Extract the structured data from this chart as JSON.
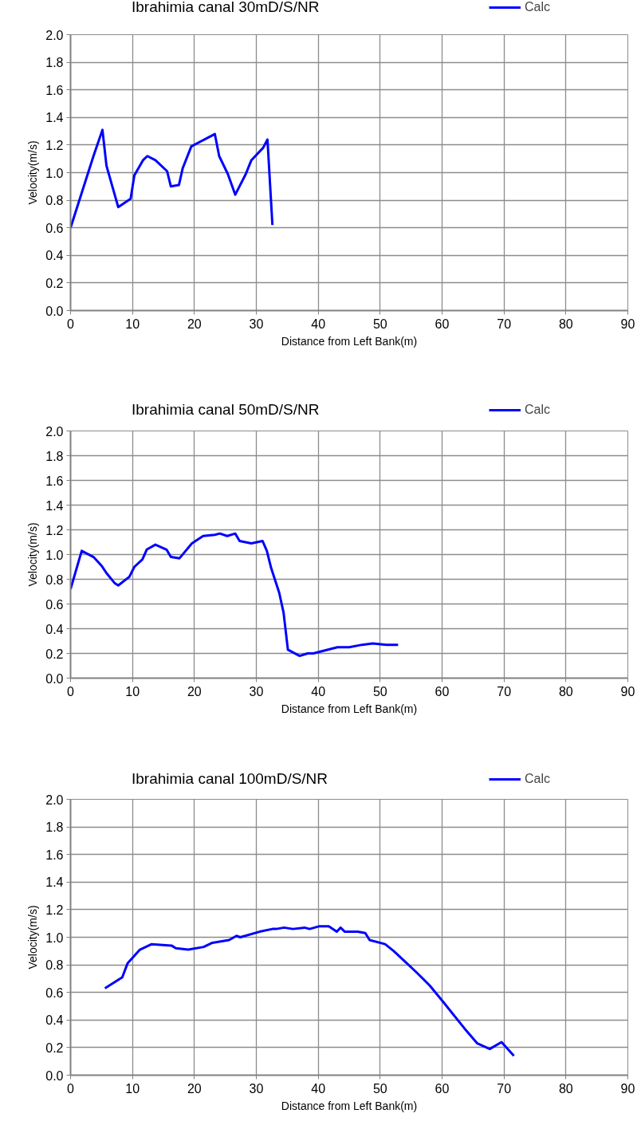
{
  "chart_data": [
    {
      "type": "line",
      "title": "Ibrahimia canal 30mD/S/NR",
      "xlabel": "Distance from Left Bank(m)",
      "ylabel": "Velocity(m/s)",
      "xlim": [
        0,
        90
      ],
      "ylim": [
        0,
        2
      ],
      "xticks": [
        0,
        10,
        20,
        30,
        40,
        50,
        60,
        70,
        80,
        90
      ],
      "yticks": [
        {
          "value": 0,
          "label": "0.0"
        },
        {
          "value": 0.2,
          "label": "0.2"
        },
        {
          "value": 0.4,
          "label": "0.4"
        },
        {
          "value": 0.6,
          "label": "0.6"
        },
        {
          "value": 0.8,
          "label": "0.8"
        },
        {
          "value": 1,
          "label": "1.0"
        },
        {
          "value": 1.2,
          "label": "1.2"
        },
        {
          "value": 1.4,
          "label": "1.4"
        },
        {
          "value": 1.6,
          "label": "1.6"
        },
        {
          "value": 1.8,
          "label": "1.8"
        },
        {
          "value": 2,
          "label": "2.0"
        }
      ],
      "grid": true,
      "legend": "top right",
      "line_style": "solid",
      "marker": "none",
      "series": [
        {
          "name": "Calc",
          "color": "#0000ff",
          "x": [
            0,
            3.7,
            5.15,
            5.8,
            7.7,
            9.7,
            10.3,
            11.7,
            12.4,
            13.7,
            15.6,
            16.2,
            17.5,
            18.1,
            19.5,
            23.3,
            24.0,
            25.4,
            26.6,
            28.3,
            29.2,
            31.1,
            31.8,
            32.6
          ],
          "values": [
            0.6,
            1.12,
            1.31,
            1.05,
            0.75,
            0.81,
            0.98,
            1.09,
            1.12,
            1.09,
            1.01,
            0.9,
            0.91,
            1.03,
            1.19,
            1.28,
            1.12,
            0.99,
            0.84,
            0.99,
            1.09,
            1.18,
            1.24,
            0.62
          ]
        }
      ]
    },
    {
      "type": "line",
      "title": "Ibrahimia canal 50mD/S/NR",
      "xlabel": "Distance from Left Bank(m)",
      "ylabel": "Velocity(m/s)",
      "xlim": [
        0,
        90
      ],
      "ylim": [
        0,
        2
      ],
      "xticks": [
        0,
        10,
        20,
        30,
        40,
        50,
        60,
        70,
        80,
        90
      ],
      "yticks": [
        {
          "value": 0,
          "label": "0.0"
        },
        {
          "value": 0.2,
          "label": "0.2"
        },
        {
          "value": 0.4,
          "label": "0.4"
        },
        {
          "value": 0.6,
          "label": "0.6"
        },
        {
          "value": 0.8,
          "label": "0.8"
        },
        {
          "value": 1,
          "label": "1.0"
        },
        {
          "value": 1.2,
          "label": "1.2"
        },
        {
          "value": 1.4,
          "label": "1.4"
        },
        {
          "value": 1.6,
          "label": "1.6"
        },
        {
          "value": 1.8,
          "label": "1.8"
        },
        {
          "value": 2,
          "label": "2.0"
        }
      ],
      "grid": true,
      "legend": "top right",
      "line_style": "solid",
      "marker": "none",
      "series": [
        {
          "name": "Calc",
          "color": "#0000ff",
          "x": [
            0,
            1.8,
            3.7,
            5.0,
            5.8,
            7.1,
            7.7,
            9.5,
            10.3,
            11.6,
            12.3,
            13.7,
            15.5,
            16.2,
            17.6,
            19.6,
            21.4,
            23.3,
            24.1,
            25.3,
            26.6,
            27.3,
            29.2,
            31.0,
            31.7,
            32.4,
            33.7,
            34.4,
            35.1,
            37.0,
            38.3,
            39.2,
            43.1,
            45.0,
            47.1,
            48.8,
            51.0,
            52.9
          ],
          "values": [
            0.72,
            1.03,
            0.98,
            0.91,
            0.85,
            0.77,
            0.75,
            0.82,
            0.9,
            0.96,
            1.04,
            1.08,
            1.04,
            0.98,
            0.97,
            1.09,
            1.15,
            1.16,
            1.17,
            1.15,
            1.17,
            1.11,
            1.09,
            1.11,
            1.03,
            0.89,
            0.69,
            0.53,
            0.23,
            0.18,
            0.2,
            0.2,
            0.25,
            0.25,
            0.27,
            0.28,
            0.27,
            0.27
          ]
        }
      ]
    },
    {
      "type": "line",
      "title": "Ibrahimia canal 100mD/S/NR",
      "xlabel": "Distance from Left Bank(m)",
      "ylabel": "Velocity(m/s)",
      "xlim": [
        0,
        90
      ],
      "ylim": [
        0,
        2
      ],
      "xticks": [
        0,
        10,
        20,
        30,
        40,
        50,
        60,
        70,
        80,
        90
      ],
      "yticks": [
        {
          "value": 0,
          "label": "0.0"
        },
        {
          "value": 0.2,
          "label": "0.2"
        },
        {
          "value": 0.4,
          "label": "0.4"
        },
        {
          "value": 0.6,
          "label": "0.6"
        },
        {
          "value": 0.8,
          "label": "0.8"
        },
        {
          "value": 1,
          "label": "1.0"
        },
        {
          "value": 1.2,
          "label": "1.2"
        },
        {
          "value": 1.4,
          "label": "1.4"
        },
        {
          "value": 1.6,
          "label": "1.6"
        },
        {
          "value": 1.8,
          "label": "1.8"
        },
        {
          "value": 2,
          "label": "2.0"
        }
      ],
      "grid": true,
      "legend": "top right",
      "line_style": "solid",
      "marker": "none",
      "series": [
        {
          "name": "Calc",
          "color": "#0000ff",
          "x": [
            5.55,
            8.35,
            9.2,
            11.2,
            13.1,
            16.3,
            17.0,
            19.0,
            21.5,
            22.9,
            25.6,
            26.8,
            27.4,
            30.5,
            32.6,
            33.2,
            34.5,
            35.9,
            37.8,
            38.6,
            40.2,
            41.7,
            43.0,
            43.6,
            44.3,
            46.4,
            47.6,
            48.3,
            50.8,
            52.2,
            54.1,
            56.0,
            58.0,
            60.2,
            63.6,
            65.7,
            67.7,
            69.6,
            71.6
          ],
          "values": [
            0.63,
            0.71,
            0.81,
            0.91,
            0.95,
            0.94,
            0.92,
            0.91,
            0.93,
            0.96,
            0.98,
            1.01,
            1.0,
            1.04,
            1.06,
            1.06,
            1.07,
            1.06,
            1.07,
            1.06,
            1.08,
            1.08,
            1.04,
            1.07,
            1.04,
            1.04,
            1.03,
            0.98,
            0.95,
            0.9,
            0.82,
            0.74,
            0.65,
            0.53,
            0.34,
            0.23,
            0.19,
            0.24,
            0.14
          ]
        }
      ]
    }
  ]
}
